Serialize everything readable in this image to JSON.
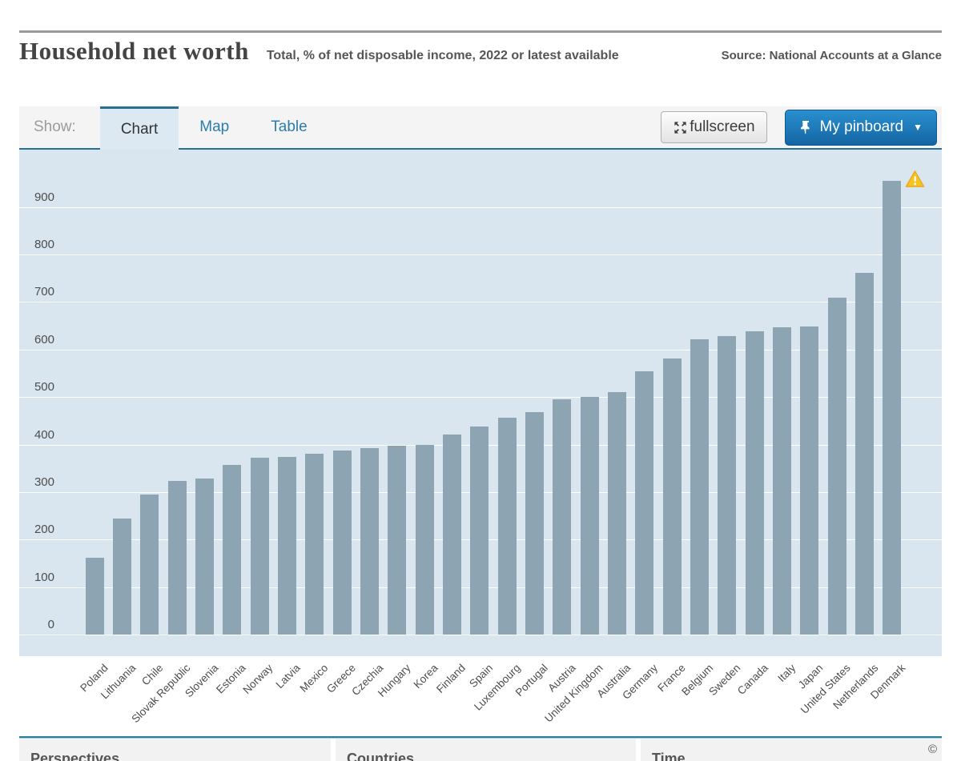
{
  "header": {
    "title": "Household net worth",
    "subtitle": "Total, % of net disposable income, 2022 or latest available",
    "source": "Source: National Accounts at a Glance"
  },
  "toolbar": {
    "show_label": "Show:",
    "tabs": [
      {
        "label": "Chart"
      },
      {
        "label": "Map"
      },
      {
        "label": "Table"
      }
    ],
    "fullscreen_label": "fullscreen",
    "pinboard_label": "My pinboard",
    "pinboard_caret": "▼"
  },
  "chart_data": {
    "type": "bar",
    "title": "Household net worth",
    "subtitle": "Total, % of net disposable income, 2022 or latest available",
    "source": "National Accounts at a Glance",
    "categories": [
      "Poland",
      "Lithuania",
      "Chile",
      "Slovak Republic",
      "Slovenia",
      "Estonia",
      "Norway",
      "Latvia",
      "Mexico",
      "Greece",
      "Czechia",
      "Hungary",
      "Korea",
      "Finland",
      "Spain",
      "Luxembourg",
      "Portugal",
      "Austria",
      "United Kingdom",
      "Australia",
      "Germany",
      "France",
      "Belgium",
      "Sweden",
      "Canada",
      "Italy",
      "Japan",
      "United States",
      "Netherlands",
      "Denmark"
    ],
    "values": [
      161,
      244,
      295,
      324,
      328,
      357,
      372,
      374,
      380,
      387,
      392,
      397,
      400,
      421,
      438,
      456,
      468,
      495,
      501,
      510,
      554,
      581,
      621,
      628,
      638,
      646,
      648,
      709,
      762,
      955
    ],
    "xlabel": "",
    "ylabel": "",
    "ylim": [
      0,
      1000
    ],
    "yticks": [
      0,
      100,
      200,
      300,
      400,
      500,
      600,
      700,
      800,
      900
    ],
    "grid": true,
    "legend": "none",
    "bar_color": "#8da4b2",
    "plot_background": "#dae6ef",
    "gridline_color": "#ffffff",
    "warning_on_last_bar": true
  },
  "footer": {
    "panels": [
      {
        "heading": "Perspectives"
      },
      {
        "heading": "Countries"
      },
      {
        "heading": "Time"
      }
    ],
    "copyright": "©"
  }
}
